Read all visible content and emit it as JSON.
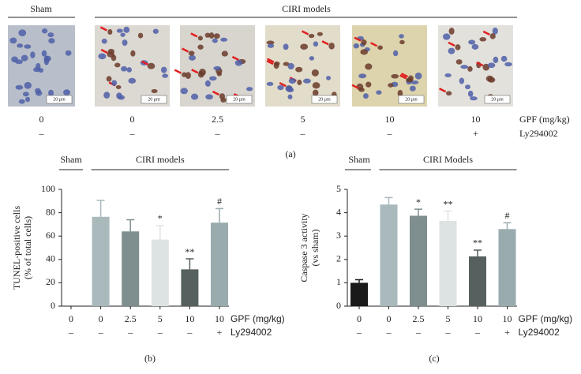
{
  "panel_a": {
    "groups": [
      "Sham",
      "CIRI models"
    ],
    "scale_bar": "20 μm",
    "doses": [
      "0",
      "0",
      "2.5",
      "5",
      "10",
      "10"
    ],
    "dose_label": "GPF (mg/kg)",
    "inhibitor": [
      "–",
      "–",
      "–",
      "–",
      "–",
      "+"
    ],
    "inhibitor_label": "Ly294002",
    "caption": "(a)"
  },
  "chart_data": [
    {
      "type": "bar",
      "ylabel": [
        "TUNEL-positive cells",
        "(% of total cells)"
      ],
      "groups": [
        "Sham",
        "CIRI models"
      ],
      "categories": [
        "0",
        "0",
        "2.5",
        "5",
        "10",
        "10"
      ],
      "values": [
        0,
        76.5,
        64,
        57,
        31.5,
        71.5
      ],
      "errors": [
        0,
        14,
        10,
        12,
        9,
        12
      ],
      "significance": [
        null,
        null,
        null,
        "*",
        "**",
        "#"
      ],
      "colors": [
        "#1a1a1a",
        "#a9b9bc",
        "#7f8e8e",
        "#dde3e3",
        "#56605f",
        "#9aabae"
      ],
      "ylim": [
        0,
        100
      ],
      "yticks": [
        0,
        20,
        40,
        60,
        80,
        100
      ],
      "dose_label": "GPF (mg/kg)",
      "inhibitor": [
        "–",
        "–",
        "–",
        "–",
        "–",
        "+"
      ],
      "inhibitor_label": "Ly294002",
      "caption": "(b)"
    },
    {
      "type": "bar",
      "ylabel": [
        "Caspase 3 activity",
        "(vs sham)"
      ],
      "groups": [
        "Sham",
        "CIRI Models"
      ],
      "categories": [
        "0",
        "0",
        "2.5",
        "5",
        "10",
        "10"
      ],
      "values": [
        1.0,
        4.35,
        3.87,
        3.65,
        2.13,
        3.3
      ],
      "errors": [
        0.13,
        0.3,
        0.28,
        0.42,
        0.27,
        0.27
      ],
      "significance": [
        null,
        null,
        "*",
        "**",
        "**",
        "#"
      ],
      "colors": [
        "#1a1a1a",
        "#a9b9bc",
        "#7f8e8e",
        "#dde3e3",
        "#56605f",
        "#9aabae"
      ],
      "ylim": [
        0,
        5
      ],
      "yticks": [
        0,
        1,
        2,
        3,
        4,
        5
      ],
      "dose_label": "GPF (mg/kg)",
      "inhibitor": [
        "–",
        "–",
        "–",
        "–",
        "–",
        "+"
      ],
      "inhibitor_label": "Ly294002",
      "caption": "(c)"
    }
  ]
}
